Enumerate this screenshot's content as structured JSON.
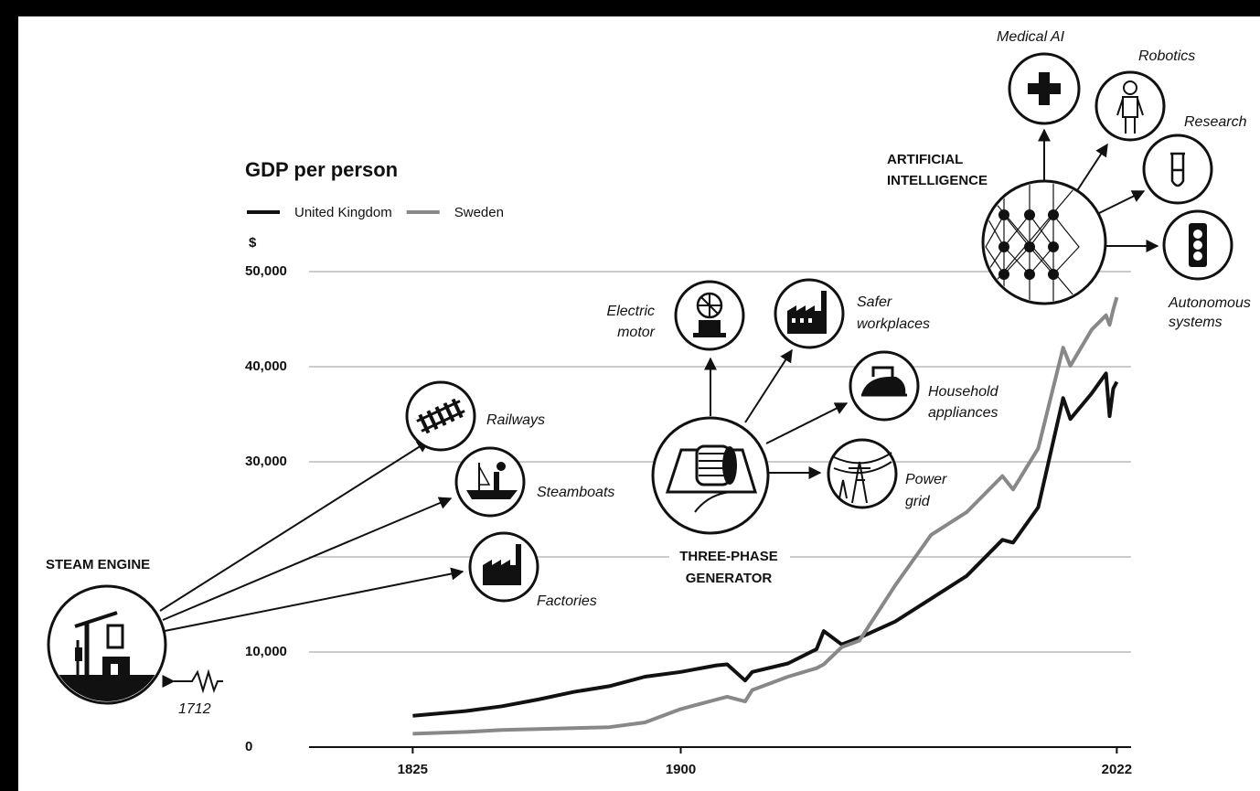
{
  "chart_data": {
    "type": "line",
    "title": "GDP per person",
    "y_label": "$",
    "x": [
      1825,
      1840,
      1850,
      1860,
      1870,
      1880,
      1890,
      1900,
      1910,
      1913,
      1918,
      1920,
      1930,
      1938,
      1940,
      1945,
      1950,
      1960,
      1970,
      1980,
      1990,
      1993,
      2000,
      2007,
      2009,
      2015,
      2019,
      2020,
      2021,
      2022
    ],
    "series": [
      {
        "name": "United Kingdom",
        "color": "#111111",
        "values": [
          3300,
          3800,
          4300,
          5000,
          5800,
          6400,
          7400,
          7900,
          8600,
          8700,
          7000,
          7900,
          8800,
          10300,
          12200,
          10800,
          11500,
          13200,
          15600,
          18000,
          21800,
          21500,
          25200,
          36700,
          34500,
          37200,
          39300,
          34800,
          37700,
          38400
        ]
      },
      {
        "name": "Sweden",
        "color": "#888888",
        "values": [
          1400,
          1600,
          1800,
          1900,
          2000,
          2100,
          2600,
          4000,
          5000,
          5300,
          4800,
          6000,
          7400,
          8300,
          8700,
          10500,
          11200,
          17000,
          22300,
          24700,
          28500,
          27100,
          31400,
          42000,
          40100,
          43900,
          45400,
          44400,
          46000,
          47300
        ]
      }
    ],
    "xlim": [
      1796,
      2026
    ],
    "xticks": [
      1825,
      1900,
      2022
    ],
    "ylim": [
      0,
      50000
    ],
    "yticks": [
      0,
      {
        "value": 10000,
        "label": "10,000"
      },
      {
        "value": 20000,
        "label": null
      },
      {
        "value": 30000,
        "label": "30,000"
      },
      {
        "value": 40000,
        "label": "40,000"
      },
      {
        "value": 50000,
        "label": "50,000"
      }
    ],
    "grid": true,
    "legend": "top-left",
    "annotations": [
      [
        "STEAM ENGINE"
      ],
      [
        "Railways"
      ],
      [
        "Steamboats"
      ],
      [
        "Factories"
      ],
      [
        "1712"
      ],
      [
        "THREE-PHASE",
        "GENERATOR"
      ],
      [
        "Electric",
        "motor"
      ],
      [
        "Safer",
        "workplaces"
      ],
      [
        "Household",
        "appliances"
      ],
      [
        "Power",
        "grid"
      ],
      [
        "ARTIFICIAL",
        "INTELLIGENCE"
      ],
      [
        "Medical AI"
      ],
      [
        "Robotics"
      ],
      [
        "Research"
      ],
      [
        "Autonomous",
        "systems"
      ]
    ]
  }
}
